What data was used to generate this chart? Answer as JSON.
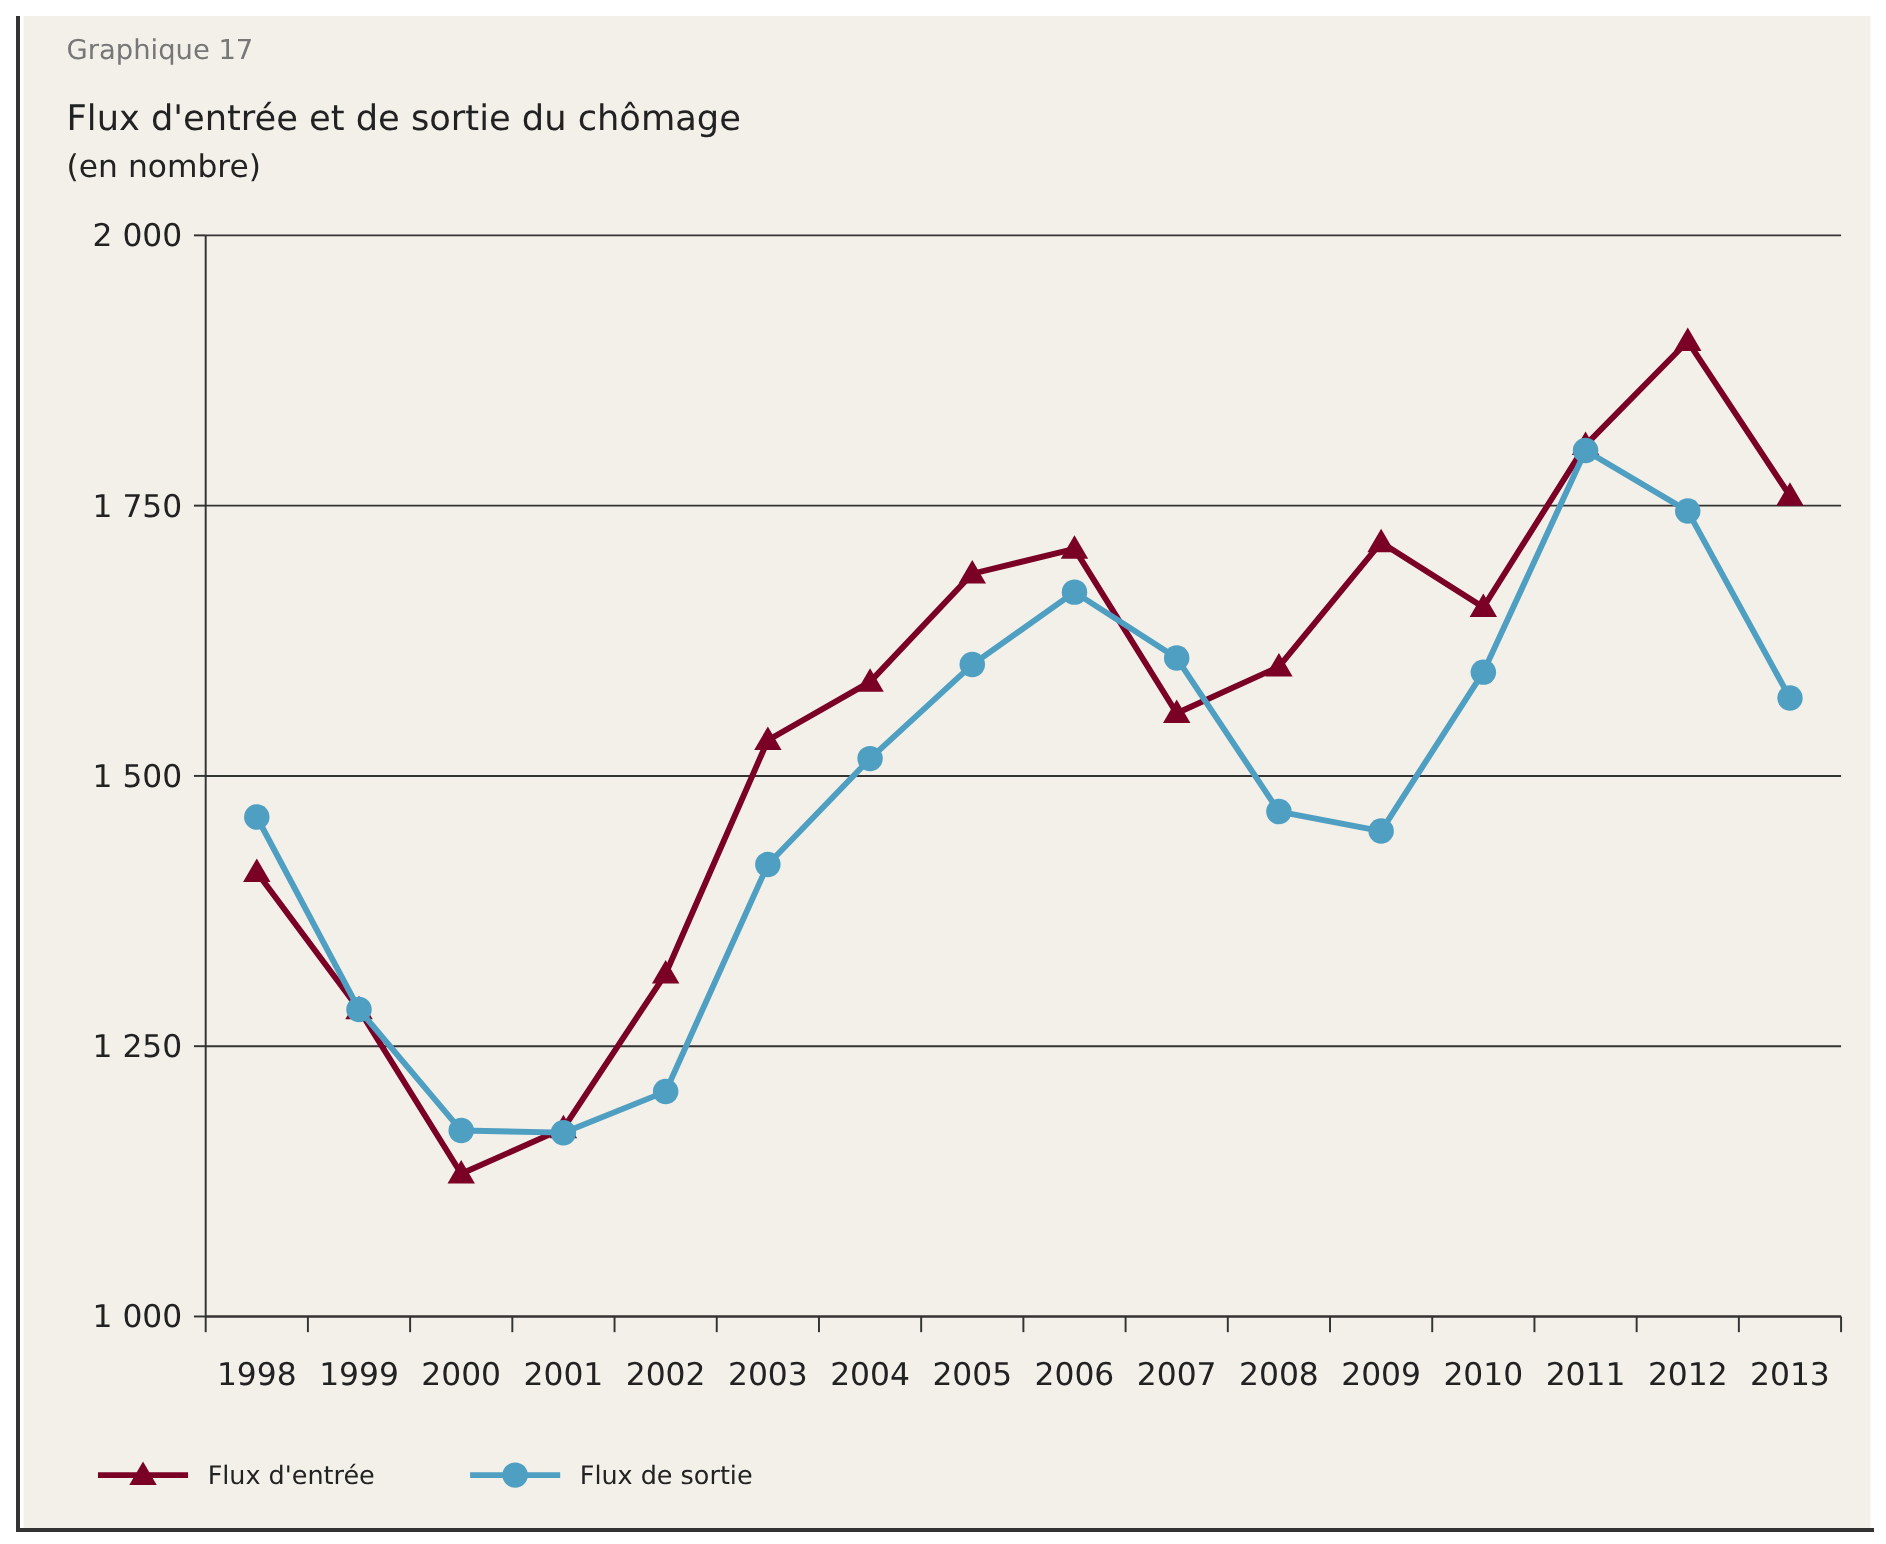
{
  "chart_data": {
    "type": "line",
    "title": "Graphique 17",
    "subtitle": "Flux d'entrée et de sortie du chômage",
    "ylabel": "(en nombre)",
    "categories": [
      "1998",
      "1999",
      "2000",
      "2001",
      "2002",
      "2003",
      "2004",
      "2005",
      "2006",
      "2007",
      "2008",
      "2009",
      "2010",
      "2011",
      "2012",
      "2013"
    ],
    "series": [
      {
        "name": "Flux d'entrée",
        "color": "#7a0026",
        "marker": "triangle",
        "values": [
          1411,
          1284,
          1132,
          1174,
          1317,
          1533,
          1587,
          1687,
          1710,
          1558,
          1601,
          1716,
          1656,
          1806,
          1902,
          1759
        ]
      },
      {
        "name": "Flux de sortie",
        "color": "#4f9fc2",
        "marker": "circle",
        "values": [
          1462,
          1284,
          1172,
          1170,
          1208,
          1418,
          1516,
          1603,
          1670,
          1609,
          1467,
          1449,
          1596,
          1801,
          1745,
          1572
        ]
      }
    ],
    "ylim": [
      1000,
      2000
    ],
    "yticks": [
      {
        "value": 1000,
        "label": "1 000"
      },
      {
        "value": 1250,
        "label": "1 250"
      },
      {
        "value": 1500,
        "label": "1 500"
      },
      {
        "value": 1750,
        "label": "1 750"
      },
      {
        "value": 2000,
        "label": "2 000"
      }
    ],
    "grid": "y",
    "legend": "bottom left",
    "line_style": "solid"
  }
}
